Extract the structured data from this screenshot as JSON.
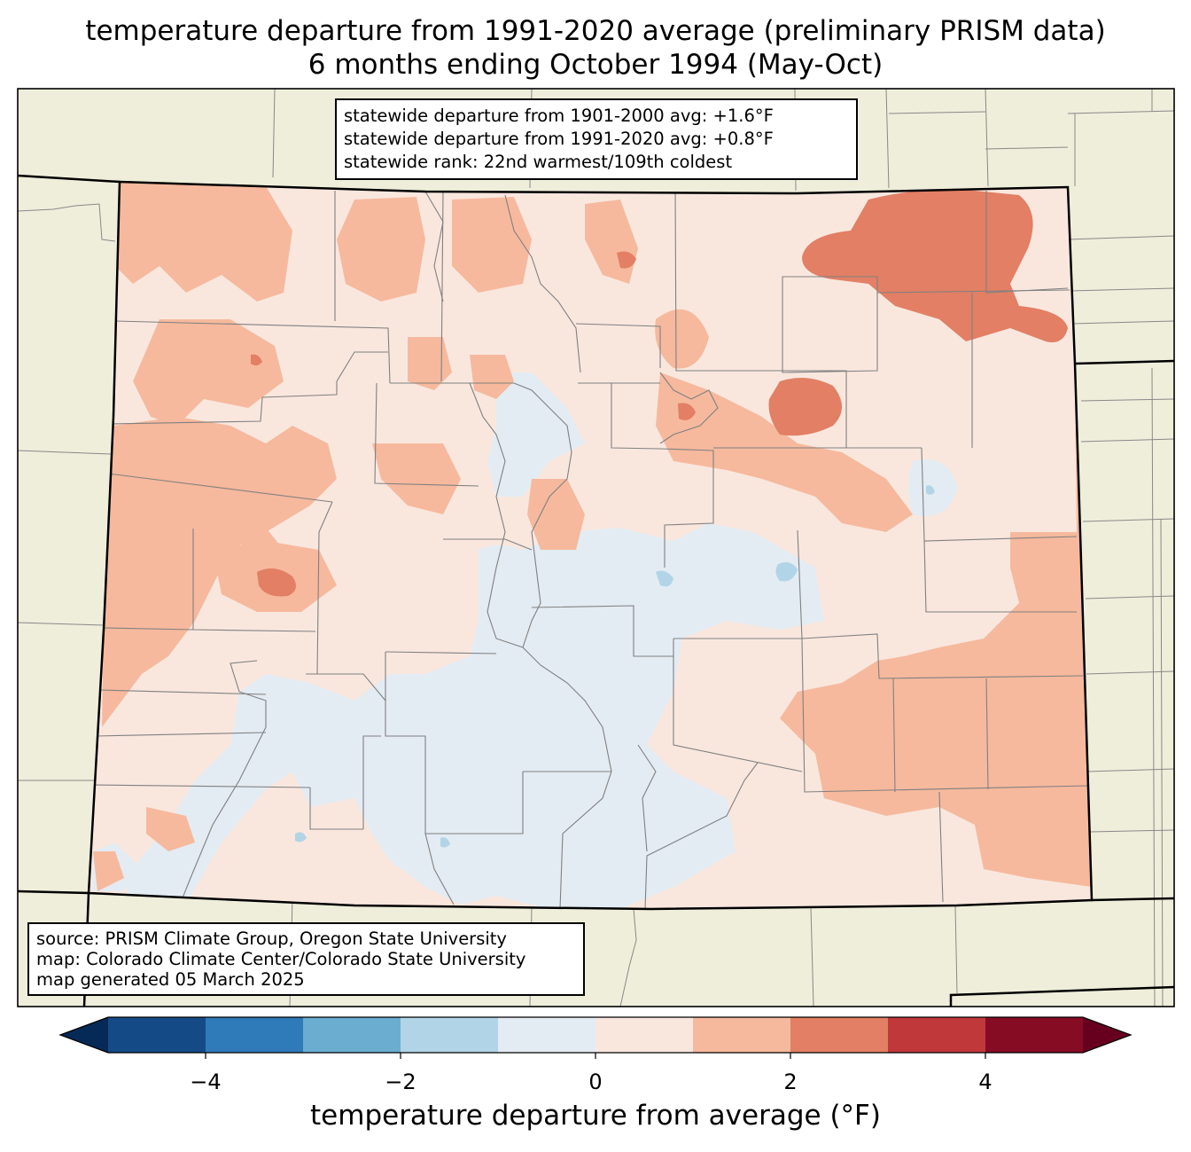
{
  "title": {
    "line1": "temperature departure from 1991-2020 average (preliminary PRISM data)",
    "line2": "6 months ending October 1994 (May-Oct)"
  },
  "stats": {
    "line1": "statewide departure from 1901-2000 avg: +1.6°F",
    "line2": "statewide departure from 1991-2020 avg: +0.8°F",
    "line3": "statewide rank: 22nd warmest/109th coldest"
  },
  "source": {
    "line1": "source: PRISM Climate Group, Oregon State University",
    "line2": "map: Colorado Climate Center/Colorado State University",
    "line3": "map generated 05 March 2025"
  },
  "colorbar": {
    "label": "temperature departure from average (°F)",
    "ticks": [
      "−4",
      "−2",
      "0",
      "2",
      "4"
    ],
    "bounds": [
      -5,
      -4,
      -3,
      -2,
      -1,
      0,
      1,
      2,
      3,
      4,
      5
    ],
    "colors": [
      "#144b87",
      "#2f7ab8",
      "#6aadd1",
      "#b2d4e7",
      "#e3ecf3",
      "#f9e7de",
      "#f6b99d",
      "#e27f64",
      "#c0383a",
      "#860c24"
    ],
    "under_color": "#062a57",
    "over_color": "#67001f"
  },
  "map_colors": {
    "outside": "#efeedb",
    "state_fill": "#f9e7de",
    "near_zero": "#e3ecf3",
    "warm1": "#f6b99d",
    "warm2": "#e27f64",
    "warm3": "#c0383a",
    "cool1": "#b2d4e7"
  }
}
